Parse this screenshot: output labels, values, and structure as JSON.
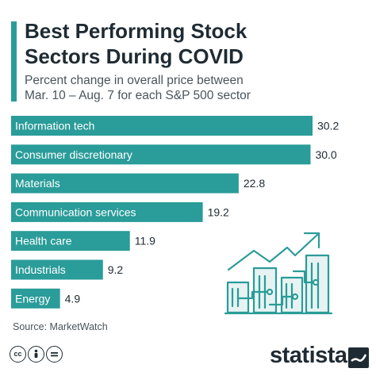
{
  "header": {
    "title_line1": "Best Performing Stock",
    "title_line2": "Sectors During COVID",
    "subtitle_line1": "Percent change in overall price between",
    "subtitle_line2": "Mar. 10 – Aug. 7 for each S&P 500 sector"
  },
  "footer": {
    "source": "Source: MarketWatch",
    "cc_icons": [
      "cc-icon",
      "person-icon",
      "equals-icon"
    ],
    "logo": "statista"
  },
  "colors": {
    "bar": "#2a9c99",
    "accent": "#2a9c99",
    "text": "#1f2b33",
    "illustration": "#2a9c99"
  },
  "chart_data": {
    "type": "bar",
    "orientation": "horizontal",
    "categories": [
      "Information tech",
      "Consumer discretionary",
      "Materials",
      "Communication services",
      "Health care",
      "Industrials",
      "Energy"
    ],
    "values": [
      30.2,
      30.0,
      22.8,
      19.2,
      11.9,
      9.2,
      4.9
    ],
    "value_labels": [
      "30.2",
      "30.0",
      "22.8",
      "19.2",
      "11.9",
      "9.2",
      "4.9"
    ],
    "xlim": [
      0,
      30.2
    ],
    "grid": false,
    "legend": "none"
  }
}
